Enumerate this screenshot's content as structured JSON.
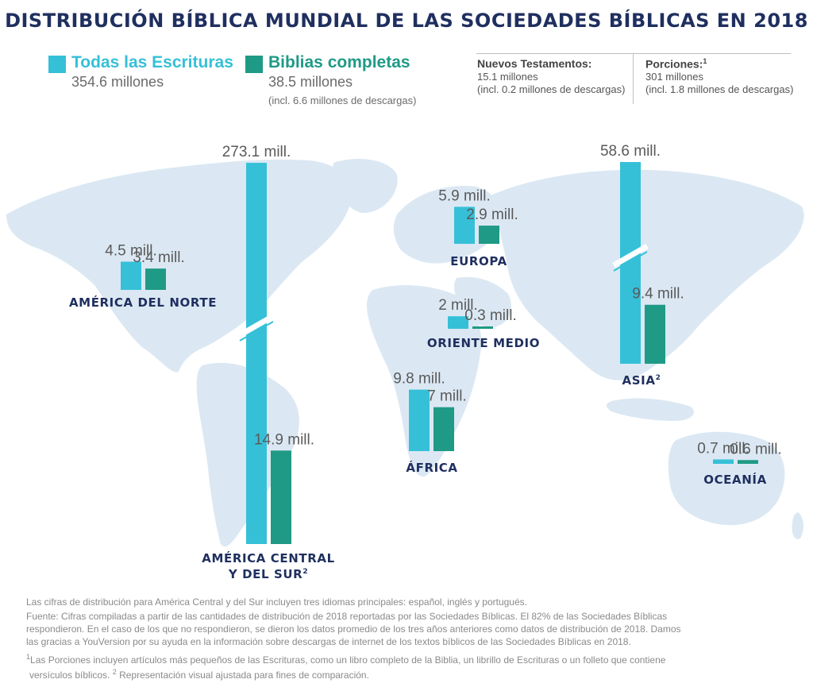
{
  "title": "DISTRIBUCIÓN BÍBLICA MUNDIAL DE LAS SOCIEDADES BÍBLICAS EN 2018",
  "legend": {
    "scriptures": {
      "label": "Todas las Escrituras",
      "value": "354.6 millones",
      "color": "#35c0d8"
    },
    "bibles": {
      "label": "Biblias completas",
      "value": "38.5 millones",
      "note": "(incl. 6.6 millones de descargas)",
      "color": "#1f9a86"
    }
  },
  "summary": {
    "new_testaments": {
      "heading": "Nuevos Testamentos:",
      "value": "15.1 millones",
      "note": "(incl. 0.2 millones de descargas)"
    },
    "portions": {
      "heading": "Porciones:",
      "sup": "1",
      "value": "301 millones",
      "note": "(incl. 1.8 millones de descargas)"
    }
  },
  "chart_data": {
    "type": "bar",
    "unit": "mill.",
    "series": [
      {
        "name": "Todas las Escrituras",
        "color": "#35c0d8"
      },
      {
        "name": "Biblias completas",
        "color": "#1f9a86"
      }
    ],
    "regions": [
      {
        "name": "AMÉRICA DEL NORTE",
        "sup": "",
        "scriptures": 4.5,
        "scriptures_label": "4.5 mill.",
        "bibles": 3.4,
        "bibles_label": "3.4 mill.",
        "broken_axis": false
      },
      {
        "name": "AMÉRICA CENTRAL",
        "name2": "Y DEL SUR",
        "sup": "2",
        "scriptures": 273.1,
        "scriptures_label": "273.1 mill.",
        "bibles": 14.9,
        "bibles_label": "14.9 mill.",
        "broken_axis": true
      },
      {
        "name": "EUROPA",
        "sup": "",
        "scriptures": 5.9,
        "scriptures_label": "5.9 mill.",
        "bibles": 2.9,
        "bibles_label": "2.9 mill.",
        "broken_axis": false
      },
      {
        "name": "ORIENTE MEDIO",
        "sup": "",
        "scriptures": 2,
        "scriptures_label": "2 mill.",
        "bibles": 0.3,
        "bibles_label": "0.3 mill.",
        "broken_axis": false
      },
      {
        "name": "ÁFRICA",
        "sup": "",
        "scriptures": 9.8,
        "scriptures_label": "9.8 mill.",
        "bibles": 7,
        "bibles_label": "7 mill.",
        "broken_axis": false
      },
      {
        "name": "ASIA",
        "sup": "2",
        "scriptures": 58.6,
        "scriptures_label": "58.6 mill.",
        "bibles": 9.4,
        "bibles_label": "9.4 mill.",
        "broken_axis": true
      },
      {
        "name": "OCEANÍA",
        "sup": "",
        "scriptures": 0.7,
        "scriptures_label": "0.7 mill.",
        "bibles": 0.6,
        "bibles_label": "0.6 mill.",
        "broken_axis": false
      }
    ]
  },
  "footnotes": {
    "line1": "Las cifras de distribución para América Central y del Sur incluyen tres idiomas principales: español, inglés y portugués.",
    "source_1": "Fuente: Cifras compiladas a partir de las cantidades de distribución de 2018 reportadas por las Sociedades Bíblicas. El 82% de las Sociedades Bíblicas",
    "source_2": "respondieron. En el caso de los que no respondieron, se dieron los datos promedio de los tres años anteriores como datos de distribución de 2018. Damos",
    "source_3": "las gracias a YouVersion por su ayuda en la información sobre descargas de internet de los textos bíblicos de las Sociedades Bíblicas en 2018.",
    "note1_mark": "1",
    "note1": "Las Porciones incluyen artículos más pequeños de las Escrituras, como un libro completo de la Biblia, un librillo de Escrituras o un folleto que contiene",
    "note1_cont": "versículos bíblicos.",
    "note2_mark": "2",
    "note2": "Representación visual ajustada para fines de comparación."
  }
}
